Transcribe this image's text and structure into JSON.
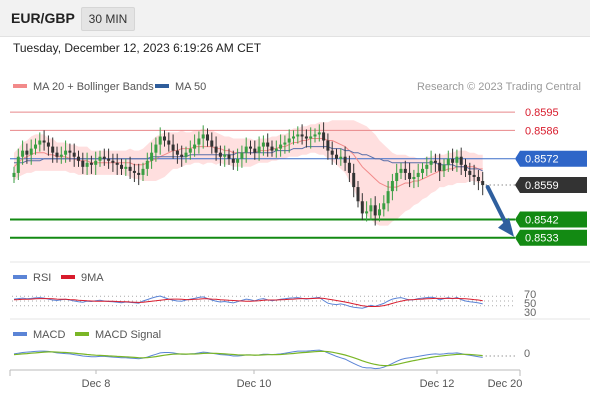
{
  "header": {
    "symbol": "EUR/GBP",
    "timeframe": "30 MIN",
    "datetime": "Tuesday, December 12, 2023 6:19:26 AM CET"
  },
  "legend": {
    "ma20_label": "MA 20 + Bollinger Bands",
    "ma50_label": "MA 50",
    "credit": "Research © 2023 Trading Central",
    "ma20_color": "#f28a8a",
    "ma50_color": "#2f5d9b"
  },
  "rsi_panel": {
    "rsi_label": "RSI",
    "ma_label": "9MA",
    "rsi_color": "#5b84d6",
    "ma_color": "#d81b2c",
    "levels": [
      "70",
      "50",
      "30"
    ]
  },
  "macd_panel": {
    "macd_label": "MACD",
    "signal_label": "MACD Signal",
    "macd_color": "#5b84d6",
    "signal_color": "#7ab626",
    "zero_label": "0"
  },
  "x_axis": {
    "labels": [
      "Dec 8",
      "Dec 10",
      "Dec 12",
      "Dec 20"
    ]
  },
  "chart_data": {
    "type": "candlestick",
    "ylim": [
      0.8521,
      0.8602
    ],
    "current_price": {
      "value": "0.8559",
      "color": "#333333"
    },
    "levels": [
      {
        "name": "resistance-2",
        "value": "0.8595",
        "color": "#e8878a",
        "text_color": "#d81b2c"
      },
      {
        "name": "resistance-1",
        "value": "0.8586",
        "color": "#e8878a",
        "text_color": "#d81b2c"
      },
      {
        "name": "pivot",
        "value": "0.8572",
        "color": "#3b6fc9",
        "text_color": "#ffffff",
        "fill": "#2f66c8"
      },
      {
        "name": "target-1",
        "value": "0.8542",
        "color": "#138a13",
        "text_color": "#ffffff",
        "fill": "#138a13"
      },
      {
        "name": "target-2",
        "value": "0.8533",
        "color": "#138a13",
        "text_color": "#ffffff",
        "fill": "#138a13"
      }
    ],
    "arrow_color": "#2f5f9e",
    "up_color": "#3a9e43",
    "down_color": "#333333",
    "band_color": "#ffd9d9",
    "closes": [
      0.8565,
      0.8573,
      0.8576,
      0.8574,
      0.8577,
      0.8579,
      0.8581,
      0.858,
      0.8578,
      0.8575,
      0.8573,
      0.8574,
      0.8576,
      0.8575,
      0.8573,
      0.8571,
      0.8568,
      0.857,
      0.8569,
      0.8571,
      0.8573,
      0.8572,
      0.8571,
      0.857,
      0.8569,
      0.8567,
      0.8568,
      0.8566,
      0.8565,
      0.8564,
      0.8567,
      0.8571,
      0.8575,
      0.8579,
      0.8583,
      0.8581,
      0.8579,
      0.8576,
      0.8574,
      0.8573,
      0.8575,
      0.8577,
      0.8579,
      0.8582,
      0.8584,
      0.8581,
      0.8578,
      0.8575,
      0.8573,
      0.8574,
      0.8572,
      0.857,
      0.8572,
      0.8575,
      0.8578,
      0.8577,
      0.8575,
      0.8578,
      0.858,
      0.8578,
      0.8576,
      0.8577,
      0.8579,
      0.858,
      0.8582,
      0.8583,
      0.8584,
      0.8583,
      0.8582,
      0.8583,
      0.8584,
      0.8585,
      0.8581,
      0.8576,
      0.8574,
      0.8572,
      0.8573,
      0.857,
      0.8565,
      0.8558,
      0.8551,
      0.8545,
      0.8546,
      0.8549,
      0.8544,
      0.8547,
      0.855,
      0.8556,
      0.8561,
      0.8565,
      0.8567,
      0.8565,
      0.8562,
      0.8563,
      0.8565,
      0.8567,
      0.8569,
      0.8571,
      0.857,
      0.8566,
      0.8569,
      0.8572,
      0.857,
      0.8573,
      0.8569,
      0.8566,
      0.8564,
      0.8563,
      0.8561,
      0.8559
    ],
    "ma20": [
      0.8568,
      0.857,
      0.8572,
      0.8573,
      0.8574,
      0.8575,
      0.8575,
      0.8575,
      0.8574,
      0.8574,
      0.8573,
      0.8573,
      0.8573,
      0.8572,
      0.8572,
      0.8571,
      0.8571,
      0.8571,
      0.857,
      0.857,
      0.857,
      0.857,
      0.857,
      0.857,
      0.857,
      0.857,
      0.857,
      0.857,
      0.8569,
      0.8569,
      0.8569,
      0.857,
      0.8571,
      0.8572,
      0.8573,
      0.8574,
      0.8575,
      0.8576,
      0.8576,
      0.8577,
      0.8577,
      0.8577,
      0.8578,
      0.8578,
      0.8578,
      0.8578,
      0.8578,
      0.8577,
      0.8577,
      0.8576,
      0.8576,
      0.8575,
      0.8575,
      0.8575,
      0.8575,
      0.8575,
      0.8575,
      0.8576,
      0.8576,
      0.8576,
      0.8577,
      0.8577,
      0.8578,
      0.8578,
      0.8579,
      0.858,
      0.858,
      0.8581,
      0.8581,
      0.8582,
      0.8582,
      0.8582,
      0.8582,
      0.8581,
      0.8581,
      0.858,
      0.8579,
      0.8578,
      0.8576,
      0.8574,
      0.8571,
      0.8568,
      0.8566,
      0.8564,
      0.8562,
      0.856,
      0.8559,
      0.8558,
      0.8558,
      0.8558,
      0.8559,
      0.856,
      0.856,
      0.8561,
      0.8561,
      0.8562,
      0.8563,
      0.8564,
      0.8565,
      0.8566,
      0.8566,
      0.8567,
      0.8567,
      0.8568,
      0.8568,
      0.8568,
      0.8568,
      0.8568,
      0.8567,
      0.8567
    ],
    "ma50": [
      0.857,
      0.857,
      0.857,
      0.8571,
      0.8571,
      0.8571,
      0.8571,
      0.8572,
      0.8572,
      0.8572,
      0.8572,
      0.8572,
      0.8572,
      0.8572,
      0.8572,
      0.8572,
      0.8572,
      0.8572,
      0.8572,
      0.8572,
      0.8572,
      0.8572,
      0.8572,
      0.8572,
      0.8572,
      0.8572,
      0.8572,
      0.8572,
      0.8572,
      0.8572,
      0.8572,
      0.8572,
      0.8573,
      0.8573,
      0.8573,
      0.8573,
      0.8573,
      0.8573,
      0.8573,
      0.8573,
      0.8573,
      0.8574,
      0.8574,
      0.8574,
      0.8574,
      0.8574,
      0.8574,
      0.8574,
      0.8574,
      0.8574,
      0.8574,
      0.8574,
      0.8575,
      0.8575,
      0.8575,
      0.8575,
      0.8575,
      0.8575,
      0.8575,
      0.8575,
      0.8575,
      0.8576,
      0.8576,
      0.8576,
      0.8576,
      0.8577,
      0.8577,
      0.8577,
      0.8578,
      0.8578,
      0.8578,
      0.8578,
      0.8578,
      0.8578,
      0.8577,
      0.8577,
      0.8577,
      0.8576,
      0.8576,
      0.8575,
      0.8575,
      0.8574,
      0.8574,
      0.8573,
      0.8572,
      0.8572,
      0.8571,
      0.8571,
      0.857,
      0.857,
      0.857,
      0.857,
      0.857,
      0.857,
      0.857,
      0.857,
      0.857,
      0.857,
      0.857,
      0.8569,
      0.8569,
      0.8569,
      0.8569,
      0.8568,
      0.8568,
      0.8568,
      0.8567,
      0.8567,
      0.8567,
      0.8566
    ],
    "band_halfwidth": [
      0.0007,
      0.0007,
      0.0008,
      0.0008,
      0.0009,
      0.0009,
      0.0009,
      0.0009,
      0.0008,
      0.0008,
      0.0007,
      0.0007,
      0.0007,
      0.0007,
      0.0007,
      0.0007,
      0.0007,
      0.0007,
      0.0006,
      0.0006,
      0.0006,
      0.0006,
      0.0006,
      0.0006,
      0.0006,
      0.0006,
      0.0006,
      0.0007,
      0.0007,
      0.0007,
      0.0008,
      0.0009,
      0.001,
      0.0011,
      0.0011,
      0.0011,
      0.001,
      0.0009,
      0.0009,
      0.0009,
      0.0008,
      0.0008,
      0.0008,
      0.0008,
      0.0009,
      0.0008,
      0.0008,
      0.0008,
      0.0007,
      0.0007,
      0.0007,
      0.0007,
      0.0007,
      0.0007,
      0.0007,
      0.0007,
      0.0006,
      0.0006,
      0.0006,
      0.0006,
      0.0006,
      0.0006,
      0.0006,
      0.0006,
      0.0006,
      0.0007,
      0.0007,
      0.0007,
      0.0007,
      0.0007,
      0.0007,
      0.0008,
      0.0008,
      0.0009,
      0.001,
      0.0011,
      0.0012,
      0.0013,
      0.0015,
      0.0017,
      0.0019,
      0.0021,
      0.0022,
      0.0022,
      0.0022,
      0.0021,
      0.002,
      0.0019,
      0.0017,
      0.0016,
      0.0015,
      0.0014,
      0.0013,
      0.0012,
      0.0011,
      0.001,
      0.001,
      0.0009,
      0.0009,
      0.0008,
      0.0008,
      0.0008,
      0.0008,
      0.0008,
      0.0008,
      0.0008,
      0.0007,
      0.0007,
      0.0007,
      0.0007
    ],
    "rsi": [
      58,
      60,
      62,
      59,
      61,
      63,
      64,
      62,
      58,
      54,
      52,
      55,
      57,
      54,
      50,
      47,
      45,
      49,
      48,
      51,
      53,
      50,
      48,
      47,
      45,
      43,
      46,
      44,
      43,
      41,
      50,
      56,
      62,
      67,
      71,
      64,
      58,
      53,
      50,
      49,
      54,
      58,
      61,
      65,
      67,
      60,
      54,
      49,
      46,
      48,
      45,
      42,
      47,
      53,
      58,
      55,
      51,
      57,
      60,
      55,
      51,
      54,
      57,
      59,
      62,
      63,
      64,
      61,
      58,
      61,
      63,
      65,
      52,
      41,
      37,
      35,
      38,
      34,
      28,
      24,
      22,
      20,
      25,
      32,
      28,
      34,
      40,
      50,
      58,
      62,
      64,
      59,
      54,
      56,
      60,
      62,
      64,
      66,
      63,
      55,
      60,
      64,
      59,
      65,
      56,
      50,
      47,
      45,
      42,
      38
    ],
    "rsi_ma": [
      55,
      56,
      57,
      57,
      58,
      59,
      60,
      60,
      60,
      59,
      58,
      57,
      57,
      56,
      55,
      53,
      52,
      51,
      50,
      49,
      49,
      49,
      49,
      49,
      48,
      47,
      47,
      46,
      45,
      44,
      45,
      47,
      49,
      51,
      53,
      55,
      57,
      58,
      58,
      57,
      56,
      56,
      57,
      58,
      59,
      59,
      58,
      57,
      55,
      54,
      53,
      52,
      51,
      50,
      49,
      49,
      50,
      51,
      53,
      54,
      54,
      54,
      55,
      56,
      57,
      58,
      59,
      60,
      60,
      60,
      61,
      62,
      61,
      58,
      55,
      52,
      49,
      46,
      42,
      38,
      34,
      30,
      28,
      27,
      27,
      28,
      31,
      35,
      40,
      45,
      49,
      53,
      55,
      56,
      57,
      58,
      59,
      60,
      61,
      61,
      61,
      61,
      61,
      61,
      60,
      59,
      58,
      56,
      54,
      51
    ],
    "macd": [
      0.3,
      0.4,
      0.5,
      0.55,
      0.6,
      0.65,
      0.7,
      0.7,
      0.65,
      0.55,
      0.45,
      0.4,
      0.35,
      0.3,
      0.2,
      0.1,
      0.0,
      -0.05,
      -0.1,
      -0.1,
      -0.05,
      -0.05,
      -0.1,
      -0.15,
      -0.2,
      -0.25,
      -0.25,
      -0.3,
      -0.35,
      -0.4,
      -0.3,
      -0.15,
      0.05,
      0.25,
      0.45,
      0.5,
      0.5,
      0.45,
      0.35,
      0.25,
      0.25,
      0.3,
      0.35,
      0.45,
      0.55,
      0.5,
      0.4,
      0.3,
      0.2,
      0.15,
      0.1,
      0.0,
      0.0,
      0.05,
      0.15,
      0.15,
      0.1,
      0.15,
      0.25,
      0.25,
      0.2,
      0.25,
      0.3,
      0.4,
      0.5,
      0.6,
      0.7,
      0.7,
      0.7,
      0.75,
      0.8,
      0.85,
      0.7,
      0.45,
      0.2,
      -0.05,
      -0.25,
      -0.45,
      -0.75,
      -1.05,
      -1.35,
      -1.6,
      -1.7,
      -1.7,
      -1.8,
      -1.75,
      -1.6,
      -1.35,
      -1.05,
      -0.75,
      -0.5,
      -0.35,
      -0.25,
      -0.15,
      -0.05,
      0.05,
      0.15,
      0.25,
      0.3,
      0.25,
      0.3,
      0.4,
      0.4,
      0.45,
      0.35,
      0.2,
      0.1,
      0.0,
      -0.1,
      -0.2
    ],
    "macd_signal": [
      0.2,
      0.25,
      0.3,
      0.35,
      0.4,
      0.45,
      0.5,
      0.55,
      0.58,
      0.58,
      0.56,
      0.53,
      0.5,
      0.46,
      0.41,
      0.35,
      0.28,
      0.22,
      0.16,
      0.11,
      0.08,
      0.05,
      0.02,
      -0.01,
      -0.05,
      -0.09,
      -0.12,
      -0.16,
      -0.2,
      -0.24,
      -0.25,
      -0.23,
      -0.17,
      -0.09,
      0.02,
      0.12,
      0.2,
      0.26,
      0.28,
      0.28,
      0.27,
      0.28,
      0.29,
      0.32,
      0.37,
      0.39,
      0.39,
      0.37,
      0.34,
      0.3,
      0.26,
      0.21,
      0.17,
      0.14,
      0.14,
      0.14,
      0.13,
      0.13,
      0.16,
      0.18,
      0.18,
      0.2,
      0.22,
      0.26,
      0.31,
      0.36,
      0.43,
      0.48,
      0.52,
      0.57,
      0.61,
      0.66,
      0.67,
      0.63,
      0.54,
      0.42,
      0.29,
      0.14,
      -0.04,
      -0.24,
      -0.46,
      -0.69,
      -0.89,
      -1.05,
      -1.2,
      -1.31,
      -1.37,
      -1.37,
      -1.31,
      -1.2,
      -1.06,
      -0.92,
      -0.79,
      -0.66,
      -0.54,
      -0.42,
      -0.31,
      -0.2,
      -0.1,
      -0.03,
      0.04,
      0.11,
      0.17,
      0.23,
      0.25,
      0.24,
      0.21,
      0.17,
      0.12,
      0.05
    ]
  }
}
